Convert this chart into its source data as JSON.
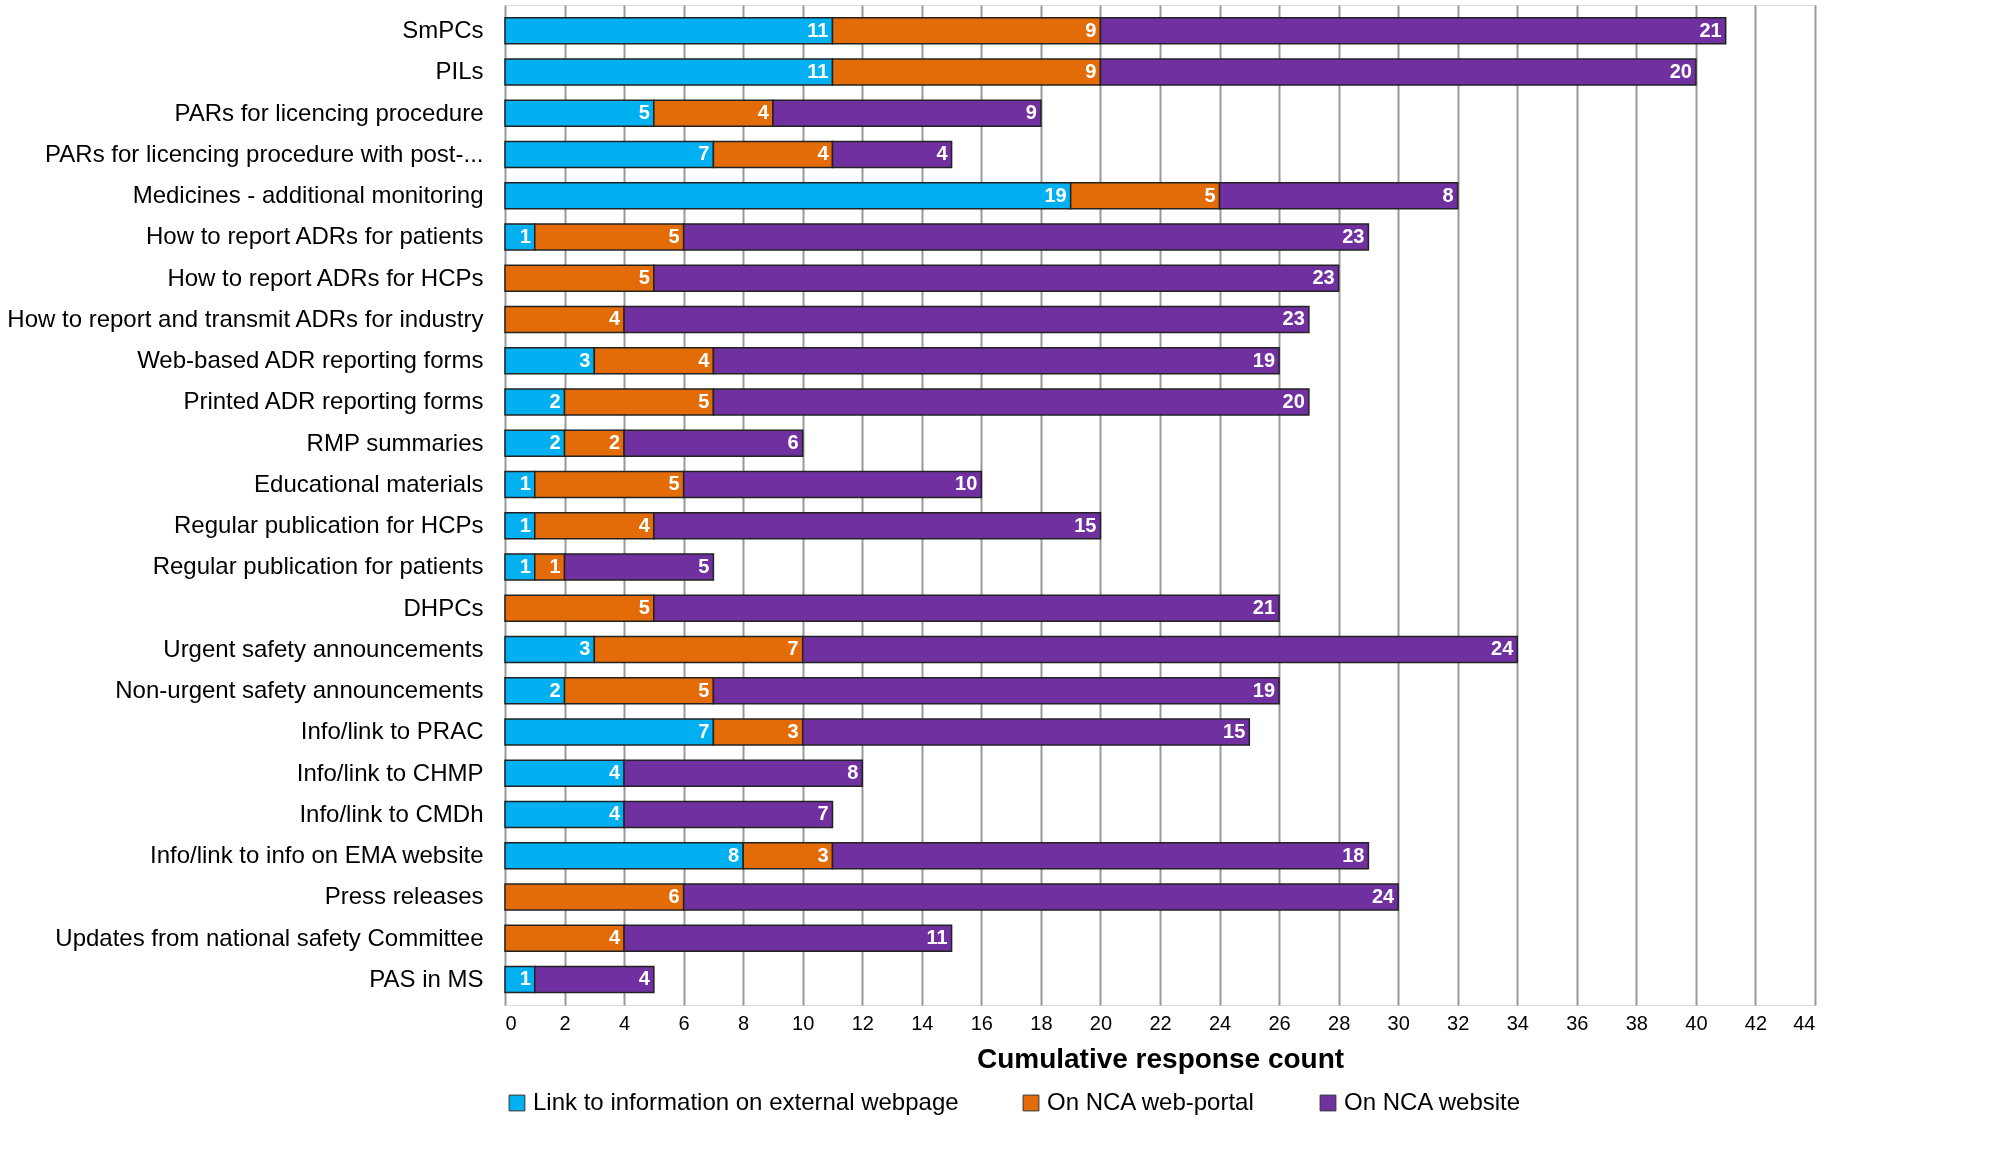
{
  "chart_data": {
    "type": "bar",
    "orientation": "horizontal",
    "stacked": true,
    "data_labels": true,
    "xlabel": "Cumulative response count",
    "xlim": [
      0,
      44
    ],
    "xticks": [
      0,
      2,
      4,
      6,
      8,
      10,
      12,
      14,
      16,
      18,
      20,
      22,
      24,
      26,
      28,
      30,
      32,
      34,
      36,
      38,
      40,
      42,
      44
    ],
    "grid": "x",
    "legend": "bottom",
    "categories": [
      "SmPCs",
      "PILs",
      "PARs for licencing procedure",
      "PARs for licencing procedure with post-...",
      "Medicines - additional monitoring",
      "How to report ADRs for patients",
      "How to report ADRs for HCPs",
      "How to report and transmit ADRs for industry",
      "Web-based ADR reporting forms",
      "Printed ADR reporting forms",
      "RMP summaries",
      "Educational materials",
      "Regular publication for HCPs",
      "Regular publication for patients",
      "DHPCs",
      "Urgent safety announcements",
      "Non-urgent safety announcements",
      "Info/link to PRAC",
      "Info/link to CHMP",
      "Info/link to CMDh",
      "Info/link to info on EMA website",
      "Press releases",
      "Updates from national safety Committee",
      "PAS in MS"
    ],
    "series": [
      {
        "name": "Link to information on external webpage",
        "color": "#00b0f0",
        "values": [
          11,
          11,
          5,
          7,
          19,
          1,
          null,
          null,
          3,
          2,
          2,
          1,
          1,
          1,
          null,
          3,
          2,
          7,
          4,
          4,
          8,
          null,
          null,
          1
        ]
      },
      {
        "name": "On NCA web-portal",
        "color": "#e36c09",
        "values": [
          9,
          9,
          4,
          4,
          5,
          5,
          5,
          4,
          4,
          5,
          2,
          5,
          4,
          1,
          5,
          7,
          5,
          3,
          null,
          null,
          3,
          6,
          4,
          null
        ]
      },
      {
        "name": "On NCA website",
        "color": "#7030a0",
        "values": [
          21,
          20,
          9,
          4,
          8,
          23,
          23,
          23,
          19,
          20,
          6,
          10,
          15,
          5,
          21,
          24,
          19,
          15,
          8,
          7,
          18,
          24,
          11,
          4
        ]
      }
    ]
  }
}
